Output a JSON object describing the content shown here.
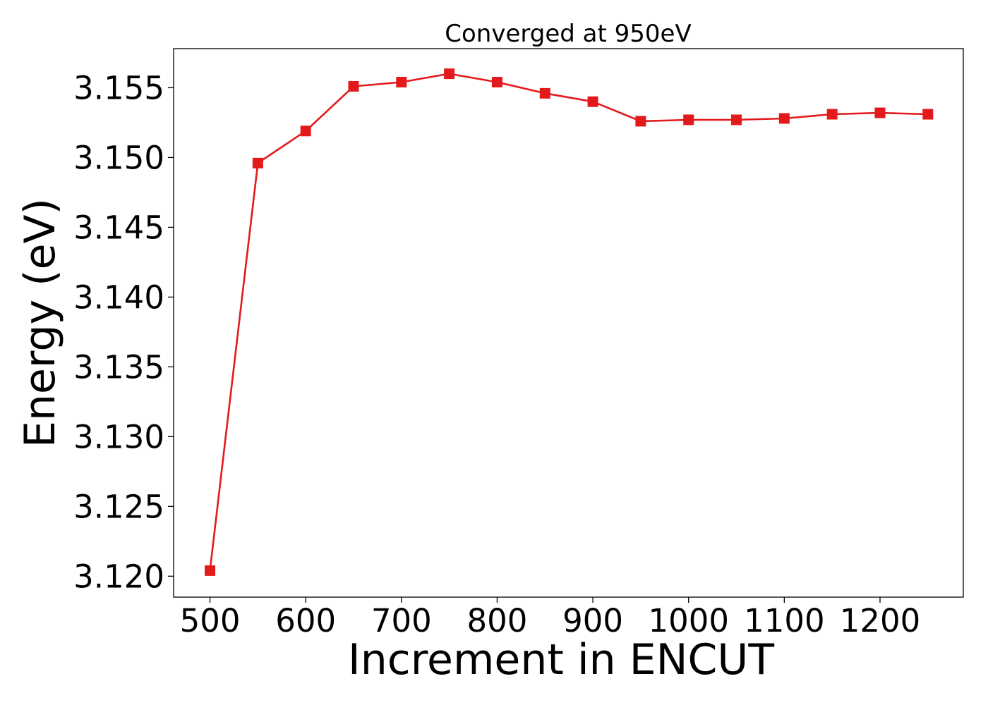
{
  "chart_data": {
    "type": "line",
    "title": "Converged at 950eV",
    "xlabel": "Increment in ENCUT",
    "ylabel": "Energy (eV)",
    "xlim": [
      462,
      1287
    ],
    "ylim": [
      3.1185,
      3.1578
    ],
    "xticks": [
      500,
      600,
      700,
      800,
      900,
      1000,
      1100,
      1200
    ],
    "xtick_labels": [
      "500",
      "600",
      "700",
      "800",
      "900",
      "1000",
      "1100",
      "1200"
    ],
    "yticks": [
      3.12,
      3.125,
      3.13,
      3.135,
      3.14,
      3.145,
      3.15,
      3.155
    ],
    "ytick_labels": [
      "3.120",
      "3.125",
      "3.130",
      "3.135",
      "3.140",
      "3.145",
      "3.150",
      "3.155"
    ],
    "grid": false,
    "series": [
      {
        "color": "#e31a1c",
        "marker": "square",
        "x": [
          500,
          550,
          600,
          650,
          700,
          750,
          800,
          850,
          900,
          950,
          1000,
          1050,
          1100,
          1150,
          1200,
          1250
        ],
        "y": [
          3.1204,
          3.1496,
          3.1519,
          3.1551,
          3.1554,
          3.156,
          3.1554,
          3.1546,
          3.154,
          3.1526,
          3.1527,
          3.1527,
          3.1528,
          3.1531,
          3.1532,
          3.1531
        ]
      }
    ]
  }
}
